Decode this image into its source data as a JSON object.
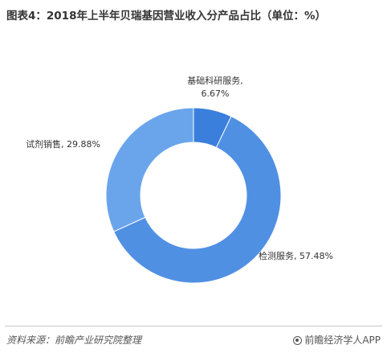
{
  "title": "图表4：2018年上半年贝瑞基因营业收入分产品占比（单位：%）",
  "chart_data": {
    "type": "pie",
    "donut": true,
    "title": "图表4：2018年上半年贝瑞基因营业收入分产品占比（单位：%）",
    "labels": [
      "基础科研服务",
      "检测服务",
      "试剂销售"
    ],
    "values": [
      6.67,
      57.48,
      29.88
    ],
    "value_labels": [
      "6.67%",
      "57.48%",
      "29.88%"
    ],
    "colors": [
      "#3a7fdc",
      "#5090e3",
      "#6aa5ec"
    ]
  },
  "footer": {
    "source": "资料来源：前瞻产业研究院整理",
    "brand": "前瞻经济学人APP"
  }
}
